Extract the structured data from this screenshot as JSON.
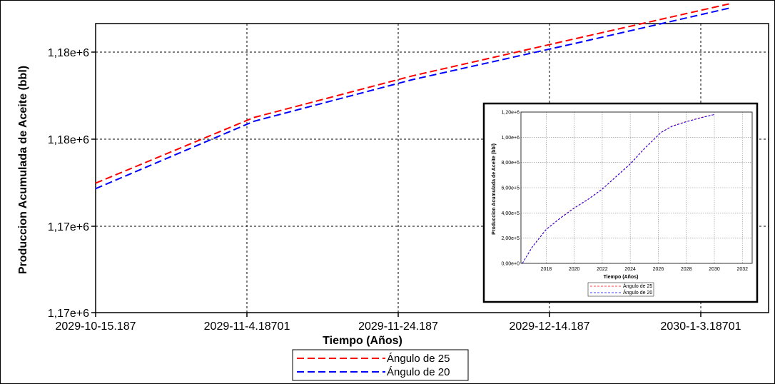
{
  "chart_data": [
    {
      "type": "line",
      "xlabel": "Tiempo (Años)",
      "ylabel": "Produccion Acumulada de Aceite (bbl)",
      "x_ticks": [
        "2029-10-15.187",
        "2029-11-4.18701",
        "2029-11-24.187",
        "2029-12-14.187",
        "2030-1-3.18701"
      ],
      "y_ticks": [
        "1,17e+6",
        "1,17e+6",
        "1,18e+6",
        "1,18e+6"
      ],
      "xlim": [
        0,
        85
      ],
      "ylim": [
        1170000,
        1180000
      ],
      "grid": true,
      "legend_position": "bottom-center",
      "series": [
        {
          "name": "Ángulo de 25",
          "color": "#ff0000",
          "dash": "dashed",
          "x": [
            0,
            20,
            40,
            60,
            80
          ],
          "y": [
            1174480,
            1176750,
            1178190,
            1179440,
            1180680
          ]
        },
        {
          "name": "Ángulo de 20",
          "color": "#0000ff",
          "dash": "dashed",
          "x": [
            0,
            20,
            40,
            60,
            80
          ],
          "y": [
            1174290,
            1176620,
            1178060,
            1179280,
            1180530
          ]
        }
      ]
    },
    {
      "type": "line",
      "inset": true,
      "xlabel": "Tiempo (Años)",
      "ylabel": "Produccion Acumulada de Aceite (bbl)",
      "x_ticks": [
        "2018",
        "2020",
        "2022",
        "2024",
        "2026",
        "2028",
        "2030",
        "2032"
      ],
      "y_ticks": [
        "0,00e+0",
        "2,00e+5",
        "4,00e+5",
        "6,00e+5",
        "8,00e+5",
        "1,00e+6",
        "1,20e+6"
      ],
      "xlim": [
        2016.2,
        2032.7
      ],
      "ylim": [
        0,
        1200000
      ],
      "grid": true,
      "legend_position": "bottom-left",
      "series": [
        {
          "name": "Ángulo de 25",
          "color": "#ff0000",
          "dash": "dashed",
          "x": [
            2016.3,
            2017,
            2018,
            2019,
            2020,
            2021,
            2022,
            2023,
            2024,
            2025,
            2026.2,
            2027,
            2028,
            2029,
            2030
          ],
          "y": [
            0,
            130000,
            270000,
            360000,
            440000,
            510000,
            590000,
            690000,
            790000,
            910000,
            1040000,
            1090000,
            1125000,
            1155000,
            1181000
          ]
        },
        {
          "name": "Ángulo de 20",
          "color": "#0000ff",
          "dash": "dashed",
          "x": [
            2016.3,
            2017,
            2018,
            2019,
            2020,
            2021,
            2022,
            2023,
            2024,
            2025,
            2026.2,
            2027,
            2028,
            2029,
            2030
          ],
          "y": [
            0,
            128000,
            268000,
            358000,
            438000,
            508000,
            588000,
            688000,
            788000,
            908000,
            1038000,
            1088000,
            1123000,
            1153000,
            1180000
          ]
        }
      ]
    }
  ]
}
